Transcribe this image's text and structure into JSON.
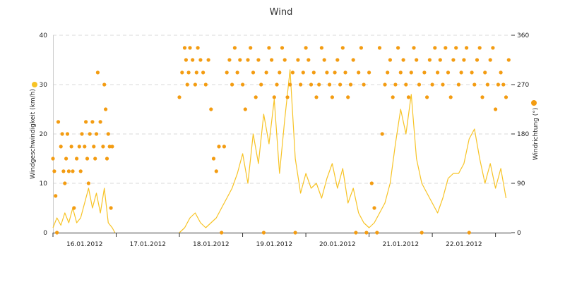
{
  "chart_data": {
    "type": "line+scatter",
    "title": "Wind",
    "x_axis": {
      "type": "date",
      "min": "2012-01-16T00:00",
      "max": "2012-01-23T06:00",
      "tick_labels": [
        "16.01.2012",
        "17.01.2012",
        "18.01.2012",
        "19.01.2012",
        "20.01.2012",
        "21.01.2012",
        "22.01.2012"
      ]
    },
    "y_axis_left": {
      "label": "Windgeschwindigkeit (km/h)",
      "range": [
        0,
        40
      ],
      "ticks": [
        "0",
        "10",
        "20",
        "30",
        "40"
      ]
    },
    "y_axis_right": {
      "label": "Windrichtung (°)",
      "range": [
        0,
        360
      ],
      "ticks": [
        "0",
        "90",
        "180",
        "270",
        "360"
      ]
    },
    "grid": "horizontal dashed",
    "series": [
      {
        "kind": "line",
        "axis": "left",
        "color": "#f7c325",
        "points": [
          [
            "2012-01-16T00:00",
            1
          ],
          [
            "2012-01-16T01:30",
            3
          ],
          [
            "2012-01-16T03:00",
            1.5
          ],
          [
            "2012-01-16T04:30",
            4
          ],
          [
            "2012-01-16T06:00",
            2
          ],
          [
            "2012-01-16T07:30",
            5
          ],
          [
            "2012-01-16T09:00",
            2
          ],
          [
            "2012-01-16T10:30",
            3
          ],
          [
            "2012-01-16T12:00",
            6
          ],
          [
            "2012-01-16T13:30",
            9
          ],
          [
            "2012-01-16T15:00",
            5
          ],
          [
            "2012-01-16T16:30",
            8
          ],
          [
            "2012-01-16T18:00",
            4
          ],
          [
            "2012-01-16T19:30",
            9
          ],
          [
            "2012-01-16T21:00",
            2
          ],
          [
            "2012-01-16T22:30",
            1
          ],
          [
            "2012-01-16T23:30",
            0
          ],
          [
            "2012-01-18T00:00",
            0
          ],
          [
            "2012-01-18T02:00",
            1
          ],
          [
            "2012-01-18T04:00",
            3
          ],
          [
            "2012-01-18T06:00",
            4
          ],
          [
            "2012-01-18T08:00",
            2
          ],
          [
            "2012-01-18T10:00",
            1
          ],
          [
            "2012-01-18T12:00",
            2
          ],
          [
            "2012-01-18T14:00",
            3
          ],
          [
            "2012-01-18T16:00",
            5
          ],
          [
            "2012-01-18T18:00",
            7
          ],
          [
            "2012-01-18T20:00",
            9
          ],
          [
            "2012-01-18T22:00",
            12
          ],
          [
            "2012-01-19T00:00",
            16
          ],
          [
            "2012-01-19T02:00",
            10
          ],
          [
            "2012-01-19T04:00",
            20
          ],
          [
            "2012-01-19T06:00",
            14
          ],
          [
            "2012-01-19T08:00",
            24
          ],
          [
            "2012-01-19T10:00",
            18
          ],
          [
            "2012-01-19T12:00",
            27
          ],
          [
            "2012-01-19T14:00",
            12
          ],
          [
            "2012-01-19T16:00",
            23
          ],
          [
            "2012-01-19T18:00",
            33
          ],
          [
            "2012-01-19T20:00",
            15
          ],
          [
            "2012-01-19T22:00",
            8
          ],
          [
            "2012-01-20T00:00",
            12
          ],
          [
            "2012-01-20T02:00",
            9
          ],
          [
            "2012-01-20T04:00",
            10
          ],
          [
            "2012-01-20T06:00",
            7
          ],
          [
            "2012-01-20T08:00",
            11
          ],
          [
            "2012-01-20T10:00",
            14
          ],
          [
            "2012-01-20T12:00",
            9
          ],
          [
            "2012-01-20T14:00",
            13
          ],
          [
            "2012-01-20T16:00",
            6
          ],
          [
            "2012-01-20T18:00",
            9
          ],
          [
            "2012-01-20T20:00",
            4
          ],
          [
            "2012-01-20T22:00",
            2
          ],
          [
            "2012-01-21T00:00",
            1
          ],
          [
            "2012-01-21T02:00",
            2
          ],
          [
            "2012-01-21T04:00",
            4
          ],
          [
            "2012-01-21T06:00",
            6
          ],
          [
            "2012-01-21T08:00",
            10
          ],
          [
            "2012-01-21T10:00",
            18
          ],
          [
            "2012-01-21T12:00",
            25
          ],
          [
            "2012-01-21T14:00",
            20
          ],
          [
            "2012-01-21T16:00",
            28
          ],
          [
            "2012-01-21T18:00",
            15
          ],
          [
            "2012-01-21T20:00",
            10
          ],
          [
            "2012-01-21T22:00",
            8
          ],
          [
            "2012-01-22T00:00",
            6
          ],
          [
            "2012-01-22T02:00",
            4
          ],
          [
            "2012-01-22T04:00",
            7
          ],
          [
            "2012-01-22T06:00",
            11
          ],
          [
            "2012-01-22T08:00",
            12
          ],
          [
            "2012-01-22T10:00",
            12
          ],
          [
            "2012-01-22T12:00",
            14
          ],
          [
            "2012-01-22T14:00",
            19
          ],
          [
            "2012-01-22T16:00",
            21
          ],
          [
            "2012-01-22T18:00",
            15
          ],
          [
            "2012-01-22T20:00",
            10
          ],
          [
            "2012-01-22T22:00",
            14
          ],
          [
            "2012-01-23T00:00",
            9
          ],
          [
            "2012-01-23T02:00",
            13
          ],
          [
            "2012-01-23T04:00",
            7
          ]
        ]
      },
      {
        "kind": "scatter",
        "axis": "right",
        "color": "#f39c12",
        "points": [
          [
            "2012-01-16T00:00",
            135
          ],
          [
            "2012-01-16T00:30",
            112
          ],
          [
            "2012-01-16T01:00",
            67
          ],
          [
            "2012-01-16T01:30",
            0
          ],
          [
            "2012-01-16T02:00",
            202
          ],
          [
            "2012-01-16T03:00",
            157
          ],
          [
            "2012-01-16T03:30",
            180
          ],
          [
            "2012-01-16T04:00",
            112
          ],
          [
            "2012-01-16T04:30",
            90
          ],
          [
            "2012-01-16T05:00",
            135
          ],
          [
            "2012-01-16T05:30",
            180
          ],
          [
            "2012-01-16T06:00",
            112
          ],
          [
            "2012-01-16T07:00",
            157
          ],
          [
            "2012-01-16T07:30",
            112
          ],
          [
            "2012-01-16T08:00",
            45
          ],
          [
            "2012-01-16T09:00",
            135
          ],
          [
            "2012-01-16T10:00",
            157
          ],
          [
            "2012-01-16T10:30",
            112
          ],
          [
            "2012-01-16T11:00",
            180
          ],
          [
            "2012-01-16T12:00",
            157
          ],
          [
            "2012-01-16T12:30",
            202
          ],
          [
            "2012-01-16T13:00",
            135
          ],
          [
            "2012-01-16T13:30",
            90
          ],
          [
            "2012-01-16T14:00",
            180
          ],
          [
            "2012-01-16T15:00",
            202
          ],
          [
            "2012-01-16T15:30",
            157
          ],
          [
            "2012-01-16T16:00",
            135
          ],
          [
            "2012-01-16T16:30",
            180
          ],
          [
            "2012-01-16T17:00",
            292
          ],
          [
            "2012-01-16T18:00",
            202
          ],
          [
            "2012-01-16T19:00",
            157
          ],
          [
            "2012-01-16T19:30",
            270
          ],
          [
            "2012-01-16T20:00",
            225
          ],
          [
            "2012-01-16T20:30",
            135
          ],
          [
            "2012-01-16T21:00",
            180
          ],
          [
            "2012-01-16T21:30",
            157
          ],
          [
            "2012-01-16T22:00",
            45
          ],
          [
            "2012-01-16T22:30",
            157
          ],
          [
            "2012-01-18T00:00",
            247
          ],
          [
            "2012-01-18T01:00",
            292
          ],
          [
            "2012-01-18T02:00",
            337
          ],
          [
            "2012-01-18T02:30",
            315
          ],
          [
            "2012-01-18T03:00",
            270
          ],
          [
            "2012-01-18T03:30",
            292
          ],
          [
            "2012-01-18T04:00",
            337
          ],
          [
            "2012-01-18T05:00",
            315
          ],
          [
            "2012-01-18T06:00",
            270
          ],
          [
            "2012-01-18T06:30",
            292
          ],
          [
            "2012-01-18T07:00",
            337
          ],
          [
            "2012-01-18T08:00",
            315
          ],
          [
            "2012-01-18T09:00",
            292
          ],
          [
            "2012-01-18T10:00",
            270
          ],
          [
            "2012-01-18T11:00",
            315
          ],
          [
            "2012-01-18T12:00",
            225
          ],
          [
            "2012-01-18T13:00",
            135
          ],
          [
            "2012-01-18T14:00",
            112
          ],
          [
            "2012-01-18T15:00",
            157
          ],
          [
            "2012-01-18T16:00",
            0
          ],
          [
            "2012-01-18T17:00",
            157
          ],
          [
            "2012-01-18T18:00",
            292
          ],
          [
            "2012-01-18T19:00",
            315
          ],
          [
            "2012-01-18T20:00",
            270
          ],
          [
            "2012-01-18T21:00",
            337
          ],
          [
            "2012-01-18T22:00",
            292
          ],
          [
            "2012-01-18T23:00",
            315
          ],
          [
            "2012-01-19T00:00",
            270
          ],
          [
            "2012-01-19T01:00",
            225
          ],
          [
            "2012-01-19T02:00",
            315
          ],
          [
            "2012-01-19T03:00",
            337
          ],
          [
            "2012-01-19T04:00",
            292
          ],
          [
            "2012-01-19T05:00",
            247
          ],
          [
            "2012-01-19T06:00",
            315
          ],
          [
            "2012-01-19T07:00",
            270
          ],
          [
            "2012-01-19T08:00",
            0
          ],
          [
            "2012-01-19T09:00",
            292
          ],
          [
            "2012-01-19T10:00",
            337
          ],
          [
            "2012-01-19T11:00",
            315
          ],
          [
            "2012-01-19T12:00",
            247
          ],
          [
            "2012-01-19T13:00",
            270
          ],
          [
            "2012-01-19T14:00",
            292
          ],
          [
            "2012-01-19T15:00",
            337
          ],
          [
            "2012-01-19T16:00",
            315
          ],
          [
            "2012-01-19T17:00",
            247
          ],
          [
            "2012-01-19T18:00",
            270
          ],
          [
            "2012-01-19T19:00",
            292
          ],
          [
            "2012-01-19T20:00",
            0
          ],
          [
            "2012-01-19T21:00",
            315
          ],
          [
            "2012-01-19T22:00",
            270
          ],
          [
            "2012-01-19T23:00",
            292
          ],
          [
            "2012-01-20T00:00",
            337
          ],
          [
            "2012-01-20T01:00",
            315
          ],
          [
            "2012-01-20T02:00",
            270
          ],
          [
            "2012-01-20T03:00",
            292
          ],
          [
            "2012-01-20T04:00",
            247
          ],
          [
            "2012-01-20T05:00",
            270
          ],
          [
            "2012-01-20T06:00",
            337
          ],
          [
            "2012-01-20T07:00",
            315
          ],
          [
            "2012-01-20T08:00",
            292
          ],
          [
            "2012-01-20T09:00",
            270
          ],
          [
            "2012-01-20T10:00",
            247
          ],
          [
            "2012-01-20T11:00",
            292
          ],
          [
            "2012-01-20T12:00",
            315
          ],
          [
            "2012-01-20T13:00",
            270
          ],
          [
            "2012-01-20T14:00",
            337
          ],
          [
            "2012-01-20T15:00",
            292
          ],
          [
            "2012-01-20T16:00",
            247
          ],
          [
            "2012-01-20T17:00",
            270
          ],
          [
            "2012-01-20T18:00",
            315
          ],
          [
            "2012-01-20T19:00",
            0
          ],
          [
            "2012-01-20T20:00",
            292
          ],
          [
            "2012-01-20T21:00",
            337
          ],
          [
            "2012-01-20T22:00",
            270
          ],
          [
            "2012-01-20T23:00",
            0
          ],
          [
            "2012-01-21T00:00",
            292
          ],
          [
            "2012-01-21T01:00",
            90
          ],
          [
            "2012-01-21T02:00",
            45
          ],
          [
            "2012-01-21T03:00",
            0
          ],
          [
            "2012-01-21T04:00",
            337
          ],
          [
            "2012-01-21T05:00",
            180
          ],
          [
            "2012-01-21T06:00",
            270
          ],
          [
            "2012-01-21T07:00",
            292
          ],
          [
            "2012-01-21T08:00",
            315
          ],
          [
            "2012-01-21T09:00",
            247
          ],
          [
            "2012-01-21T10:00",
            270
          ],
          [
            "2012-01-21T11:00",
            337
          ],
          [
            "2012-01-21T12:00",
            292
          ],
          [
            "2012-01-21T13:00",
            315
          ],
          [
            "2012-01-21T14:00",
            270
          ],
          [
            "2012-01-21T15:00",
            247
          ],
          [
            "2012-01-21T16:00",
            292
          ],
          [
            "2012-01-21T17:00",
            337
          ],
          [
            "2012-01-21T18:00",
            315
          ],
          [
            "2012-01-21T19:00",
            270
          ],
          [
            "2012-01-21T20:00",
            0
          ],
          [
            "2012-01-21T21:00",
            292
          ],
          [
            "2012-01-21T22:00",
            247
          ],
          [
            "2012-01-21T23:00",
            315
          ],
          [
            "2012-01-22T00:00",
            270
          ],
          [
            "2012-01-22T01:00",
            337
          ],
          [
            "2012-01-22T02:00",
            292
          ],
          [
            "2012-01-22T03:00",
            315
          ],
          [
            "2012-01-22T04:00",
            270
          ],
          [
            "2012-01-22T05:00",
            337
          ],
          [
            "2012-01-22T06:00",
            292
          ],
          [
            "2012-01-22T07:00",
            247
          ],
          [
            "2012-01-22T08:00",
            315
          ],
          [
            "2012-01-22T09:00",
            337
          ],
          [
            "2012-01-22T10:00",
            270
          ],
          [
            "2012-01-22T11:00",
            292
          ],
          [
            "2012-01-22T12:00",
            315
          ],
          [
            "2012-01-22T13:00",
            337
          ],
          [
            "2012-01-22T14:00",
            0
          ],
          [
            "2012-01-22T15:00",
            292
          ],
          [
            "2012-01-22T16:00",
            270
          ],
          [
            "2012-01-22T17:00",
            315
          ],
          [
            "2012-01-22T18:00",
            337
          ],
          [
            "2012-01-22T19:00",
            247
          ],
          [
            "2012-01-22T20:00",
            292
          ],
          [
            "2012-01-22T21:00",
            270
          ],
          [
            "2012-01-22T22:00",
            315
          ],
          [
            "2012-01-22T23:00",
            337
          ],
          [
            "2012-01-23T00:00",
            225
          ],
          [
            "2012-01-23T01:00",
            270
          ],
          [
            "2012-01-23T02:00",
            292
          ],
          [
            "2012-01-23T03:00",
            270
          ],
          [
            "2012-01-23T04:00",
            247
          ],
          [
            "2012-01-23T05:00",
            315
          ]
        ]
      }
    ]
  }
}
